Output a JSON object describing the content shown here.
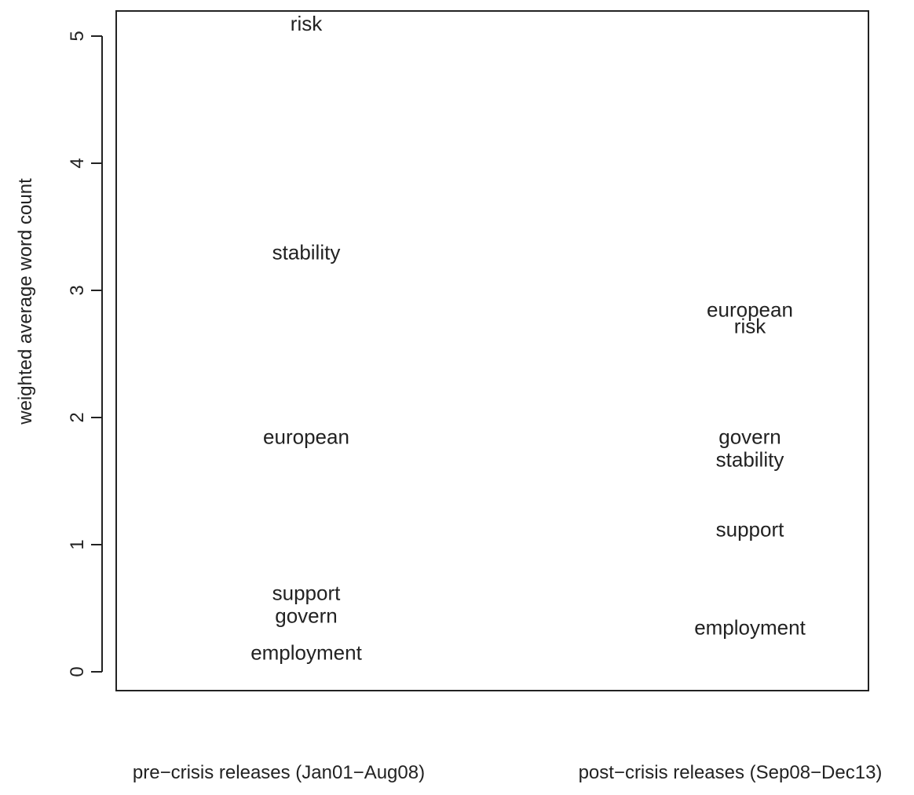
{
  "chart_data": {
    "type": "scatter",
    "title": "",
    "xlabel": "",
    "ylabel": "weighted average word count",
    "ylim": [
      0,
      5
    ],
    "yticks": [
      "0",
      "1",
      "2",
      "3",
      "4",
      "5"
    ],
    "grid": false,
    "categories": [
      "pre−crisis releases (Jan01−Aug08)",
      "post−crisis releases (Sep08−Dec13)"
    ],
    "points": [
      {
        "category": 0,
        "label": "risk",
        "value": 5.1
      },
      {
        "category": 0,
        "label": "stability",
        "value": 3.3
      },
      {
        "category": 0,
        "label": "european",
        "value": 1.85
      },
      {
        "category": 0,
        "label": "support",
        "value": 0.62
      },
      {
        "category": 0,
        "label": "govern",
        "value": 0.44
      },
      {
        "category": 0,
        "label": "employment",
        "value": 0.15
      },
      {
        "category": 1,
        "label": "european",
        "value": 2.85
      },
      {
        "category": 1,
        "label": "risk",
        "value": 2.72
      },
      {
        "category": 1,
        "label": "govern",
        "value": 1.85
      },
      {
        "category": 1,
        "label": "stability",
        "value": 1.67
      },
      {
        "category": 1,
        "label": "support",
        "value": 1.12
      },
      {
        "category": 1,
        "label": "employment",
        "value": 0.35
      }
    ]
  }
}
